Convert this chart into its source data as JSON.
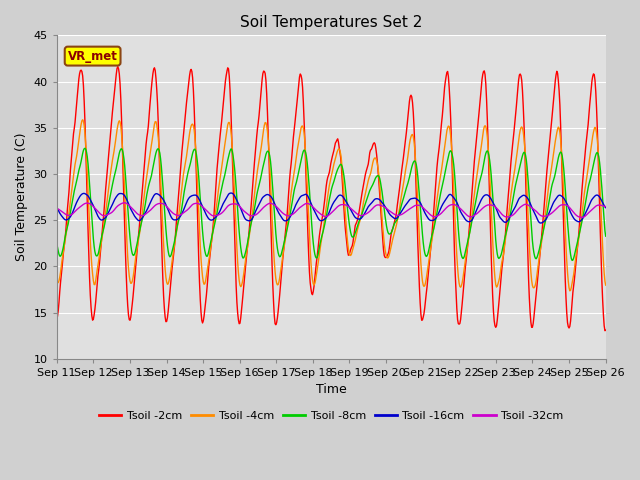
{
  "title": "Soil Temperatures Set 2",
  "xlabel": "Time",
  "ylabel": "Soil Temperature (C)",
  "ylim": [
    10,
    45
  ],
  "yticks": [
    10,
    15,
    20,
    25,
    30,
    35,
    40,
    45
  ],
  "fig_facecolor": "#d0d0d0",
  "plot_facecolor": "#e0e0e0",
  "colors": {
    "Tsoil -2cm": "#ff0000",
    "Tsoil -4cm": "#ff8c00",
    "Tsoil -8cm": "#00cc00",
    "Tsoil -16cm": "#0000cc",
    "Tsoil -32cm": "#cc00cc"
  },
  "annotation_text": "VR_met",
  "annotation_fc": "yellow",
  "annotation_ec": "#8B4513",
  "annotation_tc": "#8B0000",
  "n_days": 15,
  "ppd": 48,
  "x_tick_labels": [
    "Sep 11",
    "Sep 12",
    "Sep 13",
    "Sep 14",
    "Sep 15",
    "Sep 16",
    "Sep 17",
    "Sep 18",
    "Sep 19",
    "Sep 20",
    "Sep 21",
    "Sep 22",
    "Sep 23",
    "Sep 24",
    "Sep 25",
    "Sep 26"
  ],
  "legend_labels": [
    "Tsoil -2cm",
    "Tsoil -4cm",
    "Tsoil -8cm",
    "Tsoil -16cm",
    "Tsoil -32cm"
  ]
}
